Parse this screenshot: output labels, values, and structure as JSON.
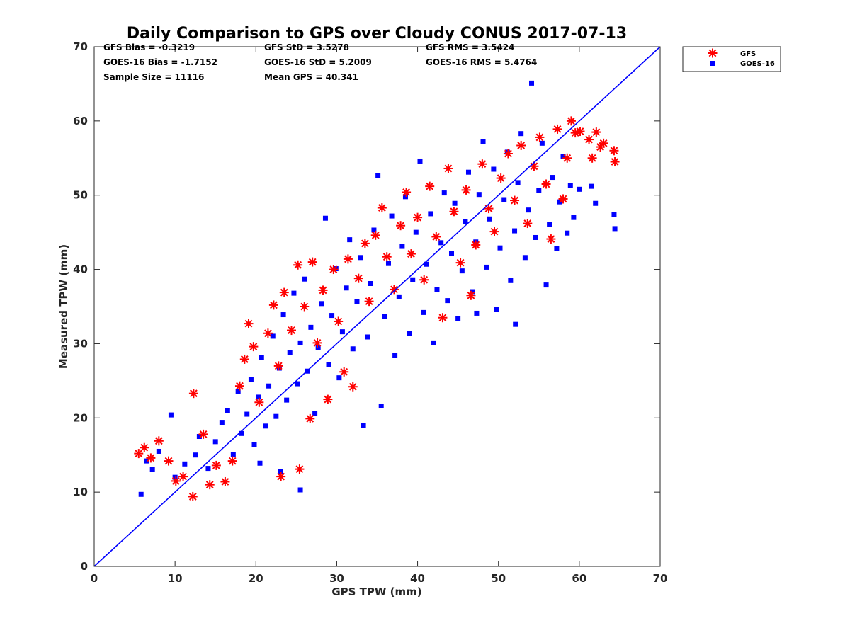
{
  "chart_data": {
    "type": "scatter",
    "title": "Daily Comparison to GPS over Cloudy CONUS 2017-07-13",
    "xlabel": "GPS TPW (mm)",
    "ylabel": "Measured TPW (mm)",
    "xlim": [
      0,
      70
    ],
    "ylim": [
      0,
      70
    ],
    "xticks": [
      "0",
      "10",
      "20",
      "30",
      "40",
      "50",
      "60",
      "70"
    ],
    "yticks": [
      "0",
      "10",
      "20",
      "30",
      "40",
      "50",
      "60",
      "70"
    ],
    "grid": false,
    "legend_position": "outside-top-right",
    "reference_line": {
      "x": [
        0,
        70
      ],
      "y": [
        0,
        70
      ],
      "color": "#0000ff"
    },
    "stats": {
      "gfs_bias": "GFS Bias = -0.3219",
      "goes_bias": "GOES-16 Bias = -1.7152",
      "sample_size": "Sample Size = 11116",
      "gfs_std": "GFS StD = 3.5278",
      "goes_std": "GOES-16 StD = 5.2009",
      "mean_gps": "Mean GPS = 40.341",
      "gfs_rms": "GFS RMS = 3.5424",
      "goes_rms": "GOES-16 RMS = 5.4764"
    },
    "series": [
      {
        "name": "GOES-16",
        "marker": "square",
        "color": "#0000ff",
        "points": [
          [
            5.8,
            9.7
          ],
          [
            6.5,
            14.2
          ],
          [
            7.2,
            13.1
          ],
          [
            8.0,
            15.5
          ],
          [
            9.5,
            20.4
          ],
          [
            10.0,
            12.0
          ],
          [
            11.2,
            13.8
          ],
          [
            12.5,
            15.0
          ],
          [
            13.0,
            17.5
          ],
          [
            14.1,
            13.2
          ],
          [
            15.0,
            16.8
          ],
          [
            15.8,
            19.4
          ],
          [
            16.5,
            21.0
          ],
          [
            17.2,
            15.1
          ],
          [
            17.8,
            23.6
          ],
          [
            18.2,
            17.9
          ],
          [
            18.9,
            20.5
          ],
          [
            19.4,
            25.2
          ],
          [
            19.8,
            16.4
          ],
          [
            20.3,
            22.8
          ],
          [
            20.7,
            28.1
          ],
          [
            21.2,
            18.9
          ],
          [
            21.6,
            24.3
          ],
          [
            22.1,
            31.0
          ],
          [
            22.5,
            20.2
          ],
          [
            22.9,
            26.7
          ],
          [
            23.4,
            33.9
          ],
          [
            23.8,
            22.4
          ],
          [
            24.2,
            28.8
          ],
          [
            24.7,
            36.8
          ],
          [
            25.1,
            24.6
          ],
          [
            25.5,
            30.1
          ],
          [
            26.0,
            38.7
          ],
          [
            26.4,
            26.3
          ],
          [
            26.8,
            32.2
          ],
          [
            27.3,
            20.6
          ],
          [
            27.7,
            29.5
          ],
          [
            28.1,
            35.4
          ],
          [
            28.6,
            46.9
          ],
          [
            29.0,
            27.2
          ],
          [
            29.4,
            33.8
          ],
          [
            29.9,
            40.1
          ],
          [
            30.3,
            25.4
          ],
          [
            30.7,
            31.6
          ],
          [
            31.2,
            37.5
          ],
          [
            31.6,
            44.0
          ],
          [
            32.0,
            29.3
          ],
          [
            32.5,
            35.7
          ],
          [
            32.9,
            41.6
          ],
          [
            33.3,
            19.0
          ],
          [
            33.8,
            30.9
          ],
          [
            34.2,
            38.1
          ],
          [
            34.6,
            45.3
          ],
          [
            35.1,
            52.6
          ],
          [
            35.5,
            21.6
          ],
          [
            35.9,
            33.7
          ],
          [
            36.4,
            40.8
          ],
          [
            36.8,
            47.2
          ],
          [
            37.2,
            28.4
          ],
          [
            37.7,
            36.3
          ],
          [
            38.1,
            43.1
          ],
          [
            38.5,
            49.8
          ],
          [
            39.0,
            31.4
          ],
          [
            39.4,
            38.6
          ],
          [
            39.8,
            45.0
          ],
          [
            40.3,
            54.6
          ],
          [
            40.7,
            34.2
          ],
          [
            41.1,
            40.7
          ],
          [
            41.6,
            47.5
          ],
          [
            42.0,
            30.1
          ],
          [
            42.4,
            37.3
          ],
          [
            42.9,
            43.6
          ],
          [
            43.3,
            50.3
          ],
          [
            43.7,
            35.8
          ],
          [
            44.2,
            42.2
          ],
          [
            44.6,
            48.9
          ],
          [
            45.0,
            33.4
          ],
          [
            45.5,
            39.8
          ],
          [
            45.9,
            46.4
          ],
          [
            46.3,
            53.1
          ],
          [
            46.8,
            37.0
          ],
          [
            47.2,
            43.7
          ],
          [
            47.6,
            50.1
          ],
          [
            48.1,
            57.2
          ],
          [
            48.5,
            40.3
          ],
          [
            48.9,
            46.8
          ],
          [
            49.4,
            53.5
          ],
          [
            49.8,
            34.6
          ],
          [
            50.2,
            42.9
          ],
          [
            50.7,
            49.4
          ],
          [
            51.1,
            55.8
          ],
          [
            51.5,
            38.5
          ],
          [
            52.0,
            45.2
          ],
          [
            52.4,
            51.7
          ],
          [
            52.8,
            58.3
          ],
          [
            53.3,
            41.6
          ],
          [
            53.7,
            48.0
          ],
          [
            54.1,
            65.1
          ],
          [
            54.6,
            44.3
          ],
          [
            55.0,
            50.6
          ],
          [
            55.4,
            57.0
          ],
          [
            55.9,
            37.9
          ],
          [
            56.3,
            46.1
          ],
          [
            56.7,
            52.4
          ],
          [
            57.2,
            42.8
          ],
          [
            57.6,
            49.1
          ],
          [
            58.0,
            55.2
          ],
          [
            58.5,
            44.9
          ],
          [
            58.9,
            51.3
          ],
          [
            59.3,
            47.0
          ],
          [
            60.0,
            50.8
          ],
          [
            61.5,
            51.2
          ],
          [
            62.0,
            48.9
          ],
          [
            64.3,
            47.4
          ],
          [
            64.4,
            45.5
          ],
          [
            25.5,
            10.3
          ],
          [
            23.0,
            12.8
          ],
          [
            20.5,
            13.9
          ],
          [
            52.1,
            32.6
          ],
          [
            47.3,
            34.1
          ]
        ]
      },
      {
        "name": "GFS",
        "marker": "asterisk",
        "color": "#ff0000",
        "points": [
          [
            5.5,
            15.2
          ],
          [
            6.2,
            16.0
          ],
          [
            7.0,
            14.6
          ],
          [
            8.0,
            16.9
          ],
          [
            9.2,
            14.2
          ],
          [
            10.1,
            11.5
          ],
          [
            11.0,
            12.1
          ],
          [
            12.2,
            9.4
          ],
          [
            12.3,
            23.3
          ],
          [
            13.5,
            17.8
          ],
          [
            14.3,
            11.0
          ],
          [
            15.1,
            13.6
          ],
          [
            16.2,
            11.4
          ],
          [
            17.1,
            14.2
          ],
          [
            18.0,
            24.3
          ],
          [
            18.6,
            27.9
          ],
          [
            19.1,
            32.7
          ],
          [
            19.7,
            29.6
          ],
          [
            20.4,
            22.1
          ],
          [
            21.5,
            31.4
          ],
          [
            22.2,
            35.2
          ],
          [
            22.8,
            27.0
          ],
          [
            23.1,
            12.1
          ],
          [
            23.5,
            36.9
          ],
          [
            24.4,
            31.8
          ],
          [
            25.2,
            40.6
          ],
          [
            25.4,
            13.1
          ],
          [
            26.0,
            35.0
          ],
          [
            26.7,
            19.9
          ],
          [
            27.0,
            41.0
          ],
          [
            27.6,
            30.1
          ],
          [
            28.3,
            37.2
          ],
          [
            28.9,
            22.5
          ],
          [
            29.6,
            40.0
          ],
          [
            30.2,
            33.0
          ],
          [
            30.9,
            26.2
          ],
          [
            31.4,
            41.4
          ],
          [
            32.0,
            24.2
          ],
          [
            32.7,
            38.8
          ],
          [
            33.5,
            43.5
          ],
          [
            34.0,
            35.7
          ],
          [
            34.8,
            44.6
          ],
          [
            35.6,
            48.3
          ],
          [
            36.2,
            41.7
          ],
          [
            37.1,
            37.3
          ],
          [
            37.9,
            45.9
          ],
          [
            38.6,
            50.4
          ],
          [
            39.2,
            42.1
          ],
          [
            40.0,
            47.0
          ],
          [
            40.8,
            38.6
          ],
          [
            41.5,
            51.2
          ],
          [
            42.3,
            44.4
          ],
          [
            43.1,
            33.5
          ],
          [
            43.8,
            53.6
          ],
          [
            44.5,
            47.8
          ],
          [
            45.3,
            40.9
          ],
          [
            46.0,
            50.7
          ],
          [
            46.6,
            36.5
          ],
          [
            47.2,
            43.3
          ],
          [
            48.0,
            54.2
          ],
          [
            48.8,
            48.2
          ],
          [
            49.5,
            45.1
          ],
          [
            50.3,
            52.3
          ],
          [
            51.2,
            55.6
          ],
          [
            52.0,
            49.3
          ],
          [
            52.8,
            56.7
          ],
          [
            53.6,
            46.2
          ],
          [
            54.4,
            53.9
          ],
          [
            55.1,
            57.8
          ],
          [
            55.9,
            51.5
          ],
          [
            56.5,
            44.1
          ],
          [
            57.3,
            58.9
          ],
          [
            58.0,
            49.5
          ],
          [
            58.5,
            55.0
          ],
          [
            59.0,
            60.0
          ],
          [
            59.5,
            58.4
          ],
          [
            60.1,
            58.6
          ],
          [
            61.2,
            57.5
          ],
          [
            61.6,
            55.0
          ],
          [
            62.1,
            58.5
          ],
          [
            62.6,
            56.5
          ],
          [
            63.0,
            57.0
          ],
          [
            64.3,
            56.0
          ],
          [
            64.4,
            54.5
          ]
        ]
      }
    ]
  }
}
